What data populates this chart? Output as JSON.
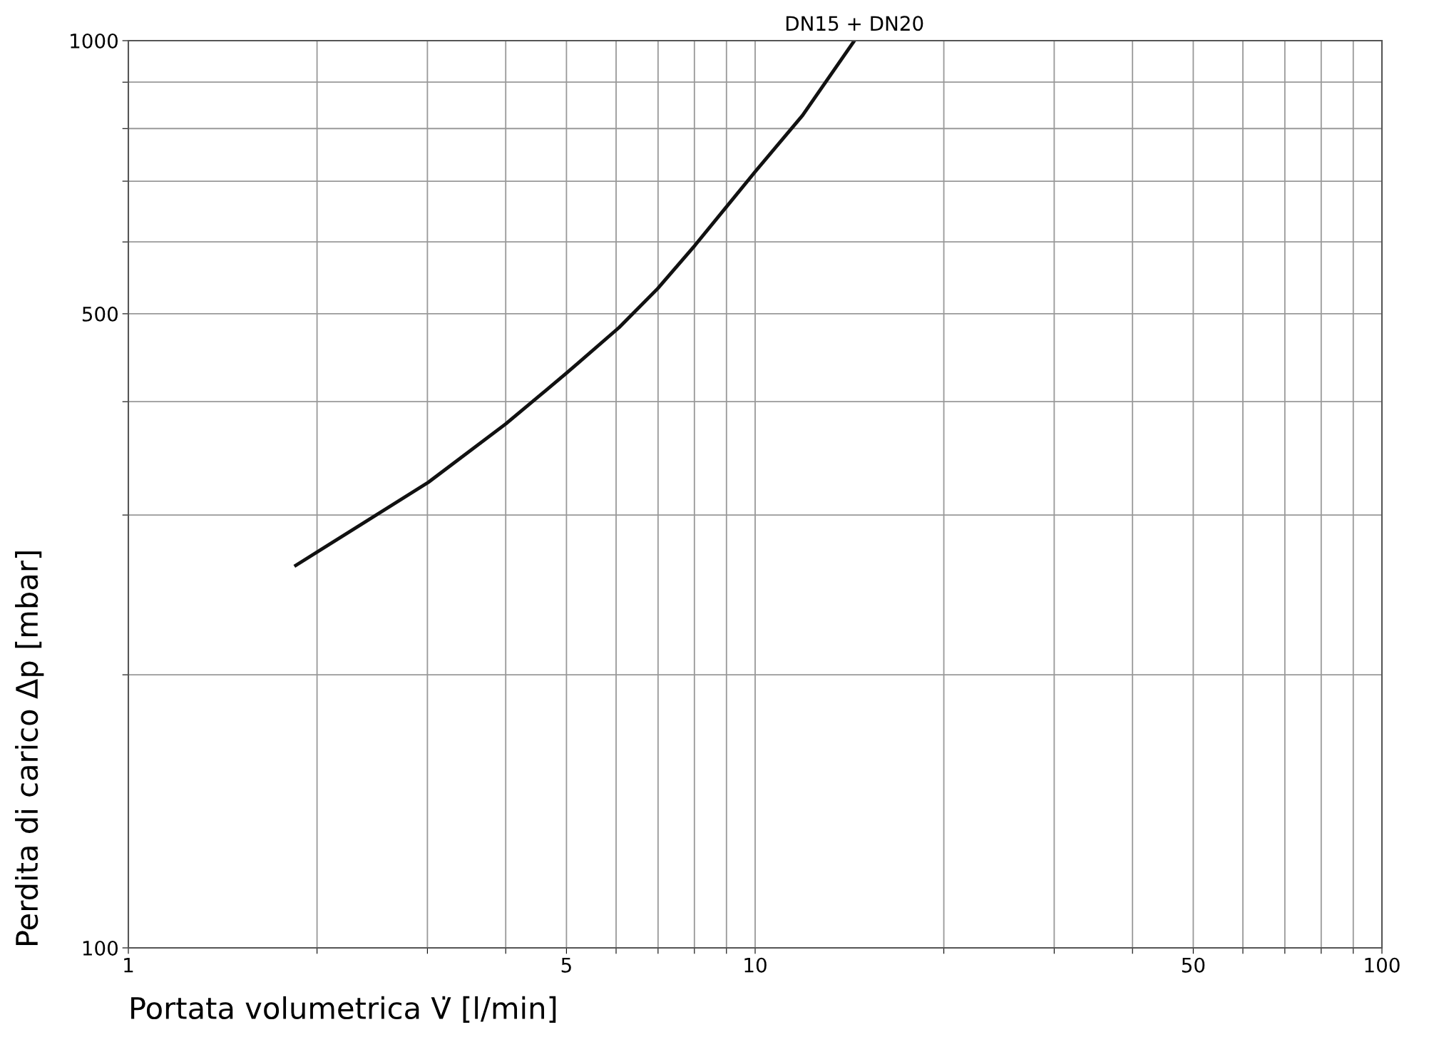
{
  "chart_data": {
    "type": "line",
    "xlabel": "Portata volumetrica V̇ [l/min]",
    "ylabel": "Perdita di carico Δp [mbar]",
    "log": "xy",
    "grid": true,
    "line_style": "solid",
    "marker": "none",
    "xlim": [
      1,
      100
    ],
    "ylim": [
      100,
      1000
    ],
    "xticks": [
      1,
      {
        "value": 2,
        "label": null
      },
      {
        "value": 3,
        "label": null
      },
      {
        "value": 4,
        "label": null
      },
      5,
      {
        "value": 6,
        "label": null
      },
      {
        "value": 7,
        "label": null
      },
      {
        "value": 8,
        "label": null
      },
      {
        "value": 9,
        "label": null
      },
      10,
      {
        "value": 20,
        "label": null
      },
      {
        "value": 30,
        "label": null
      },
      {
        "value": 40,
        "label": null
      },
      50,
      {
        "value": 60,
        "label": null
      },
      {
        "value": 70,
        "label": null
      },
      {
        "value": 80,
        "label": null
      },
      {
        "value": 90,
        "label": null
      },
      100
    ],
    "yticks": [
      100,
      {
        "value": 200,
        "label": null
      },
      {
        "value": 300,
        "label": null
      },
      {
        "value": 400,
        "label": null
      },
      500,
      {
        "value": 600,
        "label": null
      },
      {
        "value": 700,
        "label": null
      },
      {
        "value": 800,
        "label": null
      },
      {
        "value": 900,
        "label": null
      },
      1000
    ],
    "series": [
      {
        "color": "#111111",
        "x": [
          1.85,
          3.01,
          4.0,
          5.0,
          6.07,
          6.99,
          8.02,
          10.0,
          11.9,
          14.4
        ],
        "values": [
          264,
          326,
          378,
          430,
          483,
          533,
          595,
          717,
          827,
          1000
        ]
      }
    ],
    "annotations": [
      {
        "text": "DN15 + DN20",
        "x": 14.4,
        "y": 1000
      }
    ]
  }
}
